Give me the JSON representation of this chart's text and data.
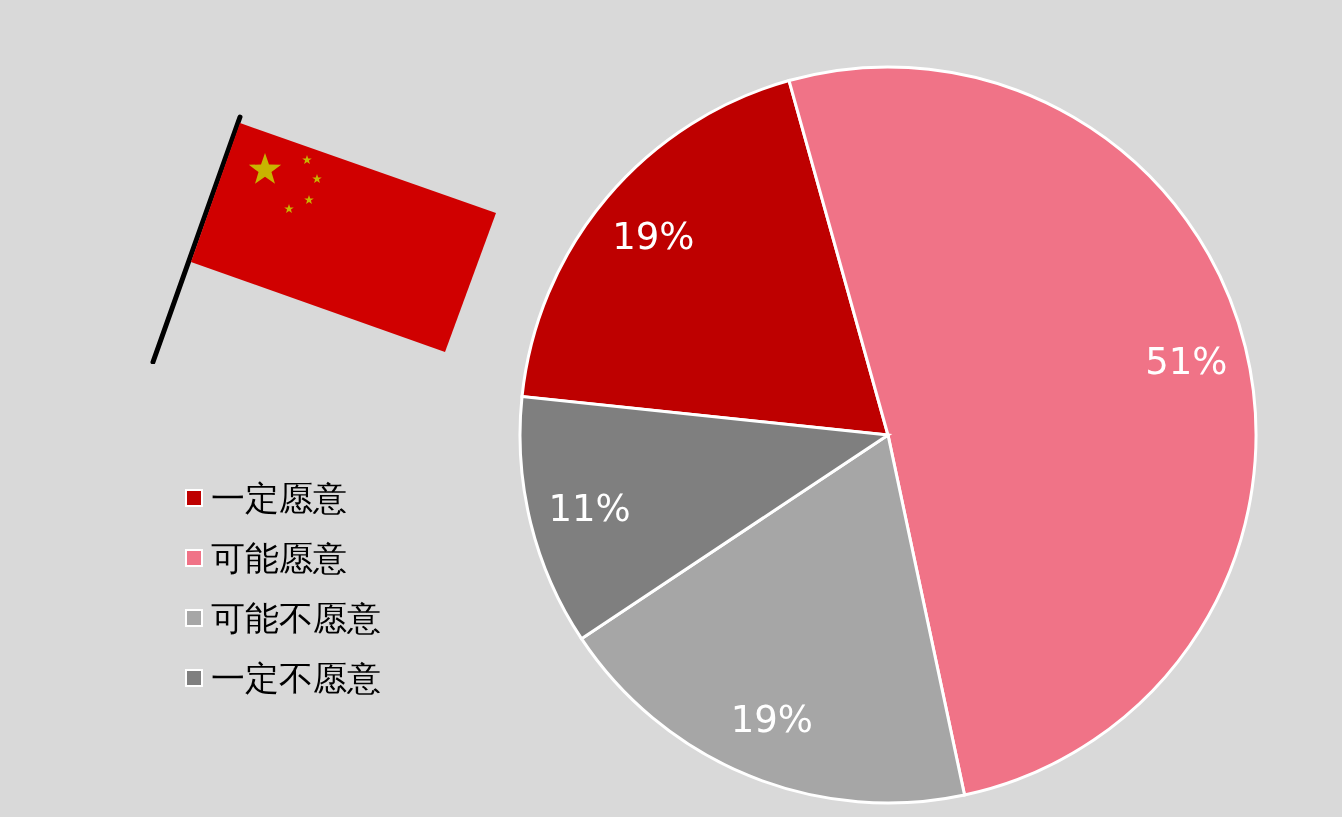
{
  "chart_data": {
    "type": "pie",
    "categories": [
      "一定愿意",
      "可能愿意",
      "可能不愿意",
      "一定不愿意"
    ],
    "values": [
      19,
      51,
      19,
      11
    ],
    "colors": [
      "#be0000",
      "#f07387",
      "#a6a6a6",
      "#7f7f7f"
    ],
    "value_labels": [
      "19%",
      "51%",
      "19%",
      "11%"
    ],
    "legend": "left"
  }
}
